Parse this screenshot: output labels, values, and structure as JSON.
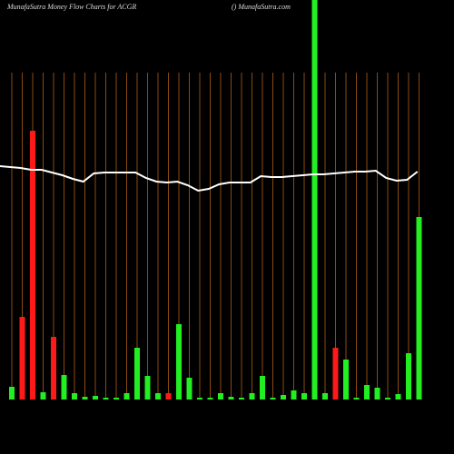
{
  "chart_data": {
    "type": "bar",
    "title": "MunafaSutra  Money Flow  Charts for ACGR",
    "subtitle": "() MunafaSutra.com",
    "ylim": [
      0,
      440
    ],
    "series": [
      {
        "name": "Money Flow",
        "colors": [
          "#22ee22",
          "#ff1a1a",
          "#ff1a1a",
          "#22ee22",
          "#ff1a1a",
          "#22ee22",
          "#22ee22",
          "#22ee22",
          "#22ee22",
          "#22ee22",
          "#22ee22",
          "#22ee22",
          "#22ee22",
          "#22ee22",
          "#22ee22",
          "#ff1a1a",
          "#22ee22",
          "#22ee22",
          "#22ee22",
          "#22ee22",
          "#22ee22",
          "#22ee22",
          "#22ee22",
          "#22ee22",
          "#22ee22",
          "#22ee22",
          "#22ee22",
          "#22ee22",
          "#22ee22",
          "#22ee22",
          "#22ee22",
          "#ff1a1a",
          "#22ee22",
          "#22ee22",
          "#22ee22",
          "#22ee22",
          "#22ee22",
          "#22ee22",
          "#22ee22",
          "#22ee22"
        ],
        "values": [
          14,
          91,
          296,
          8,
          69,
          27,
          7,
          3,
          4,
          2,
          2,
          7,
          57,
          26,
          7,
          7,
          83,
          24,
          2,
          2,
          7,
          3,
          2,
          7,
          26,
          2,
          5,
          10,
          7,
          440,
          7,
          57,
          44,
          2,
          16,
          13,
          2,
          6,
          51,
          201
        ]
      },
      {
        "name": "Trend",
        "color": "#ffffff",
        "values": [
          257,
          255,
          253,
          253,
          250,
          247,
          243,
          240,
          249,
          250,
          250,
          250,
          250,
          244,
          240,
          239,
          240,
          236,
          230,
          232,
          237,
          239,
          239,
          239,
          246,
          245,
          245,
          246,
          247,
          248,
          248,
          249,
          250,
          251,
          251,
          252,
          244,
          241,
          242,
          251
        ]
      }
    ]
  }
}
